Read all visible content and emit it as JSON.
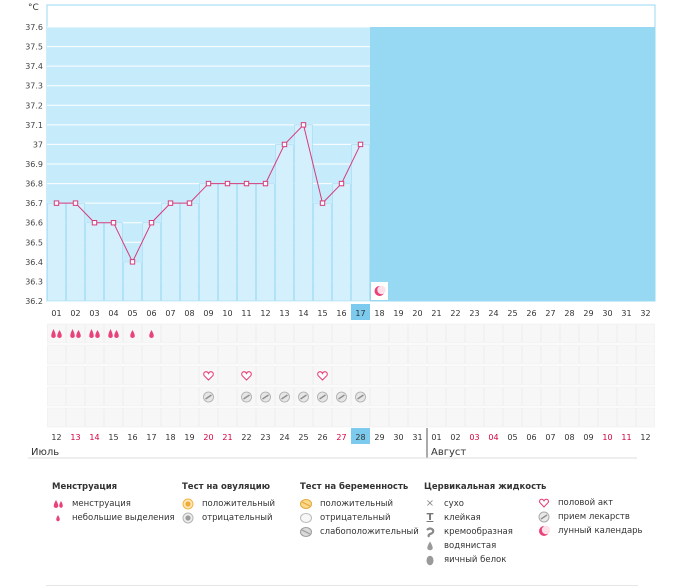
{
  "chart_data": {
    "type": "line",
    "unit": "°C",
    "ylim": [
      36.2,
      37.6
    ],
    "y_ticks": [
      "37.6",
      "37.5",
      "37.4",
      "37.3",
      "37.2",
      "37.1",
      "37",
      "36.9",
      "36.8",
      "36.7",
      "36.6",
      "36.5",
      "36.4",
      "36.3",
      "36.2"
    ],
    "cycle_days": [
      "01",
      "02",
      "03",
      "04",
      "05",
      "06",
      "07",
      "08",
      "09",
      "10",
      "11",
      "12",
      "13",
      "14",
      "15",
      "16",
      "17",
      "18",
      "19",
      "20",
      "21",
      "22",
      "23",
      "24",
      "25",
      "26",
      "27",
      "28",
      "29",
      "30",
      "31",
      "32"
    ],
    "current_day": "17",
    "series": [
      {
        "values": [
          36.7,
          36.7,
          36.6,
          36.6,
          36.4,
          36.6,
          36.7,
          36.7,
          36.8,
          36.8,
          36.8,
          36.8,
          37.0,
          37.1,
          36.7,
          36.8,
          37.0
        ]
      }
    ],
    "calendar_dates": [
      "12",
      "13",
      "14",
      "15",
      "16",
      "17",
      "18",
      "19",
      "20",
      "21",
      "22",
      "23",
      "24",
      "25",
      "26",
      "27",
      "28",
      "29",
      "30",
      "31",
      "01",
      "02",
      "03",
      "04",
      "05",
      "06",
      "07",
      "08",
      "09",
      "10",
      "11",
      "12"
    ],
    "weekend_dates_red": [
      false,
      true,
      true,
      false,
      false,
      false,
      false,
      false,
      true,
      true,
      false,
      false,
      false,
      false,
      false,
      true,
      false,
      false,
      false,
      false,
      false,
      false,
      true,
      true,
      false,
      false,
      false,
      false,
      false,
      true,
      true,
      false
    ],
    "months": [
      "Июль",
      "Август"
    ],
    "markers": {
      "menstruation_heavy_days": [
        1,
        2,
        3,
        4
      ],
      "menstruation_light_days": [
        5,
        6
      ],
      "intercourse_days": [
        9,
        11,
        15
      ],
      "medication_days": [
        9,
        11,
        12,
        13,
        14,
        15,
        16,
        17
      ],
      "lunar_day": 18
    }
  },
  "colors": {
    "sky": "#97d8f2",
    "past_fill": "#c6ebfb",
    "bar_fill": "#d5f0fd",
    "line": "#d63a7b",
    "marker": "#d63a7b",
    "day_highlight": "#7ccbee",
    "weekend_red": "#d6003e",
    "grid": "#eeeeee",
    "moon": "#e8447a"
  },
  "legend": {
    "menstruation": {
      "title": "Менструация",
      "items": [
        "менструация",
        "небольшие выделения"
      ]
    },
    "ovulation_test": {
      "title": "Тест на овуляцию",
      "items": [
        "положительный",
        "отрицательный"
      ]
    },
    "pregnancy_test": {
      "title": "Тест на беременность",
      "items": [
        "положительный",
        "отрицательный",
        "слабоположительный"
      ]
    },
    "cervical_fluid": {
      "title": "Цервикальная жидкость",
      "items": [
        "сухо",
        "клейкая",
        "кремообразная",
        "водянистая",
        "яичный белок"
      ]
    },
    "other": {
      "items": [
        "половой акт",
        "прием лекарств",
        "лунный календарь"
      ]
    },
    "icons": {
      "menstruation": "blood-drops-icon",
      "light_discharge": "small-drop-icon",
      "ovulation_positive": "orange-circle-icon",
      "ovulation_negative": "gray-circle-icon",
      "pregnancy_positive": "orange-pill-icon",
      "pregnancy_negative": "white-pill-icon",
      "pregnancy_weak": "gray-pill-icon",
      "dry": "x-icon",
      "sticky": "t-icon",
      "creamy": "cream-icon",
      "watery": "water-drop-icon",
      "eggwhite": "egg-drop-icon",
      "intercourse": "heart-icon",
      "medication": "pill-icon",
      "lunar": "moon-icon"
    }
  }
}
